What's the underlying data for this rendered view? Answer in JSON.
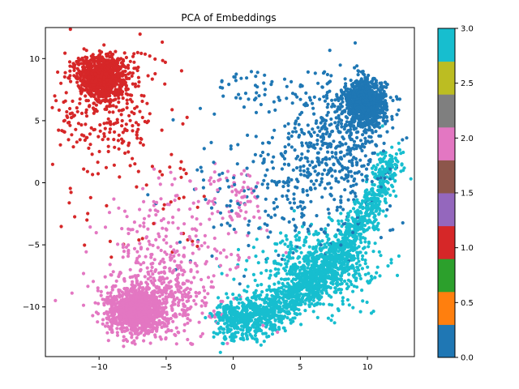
{
  "chart_data": {
    "type": "scatter",
    "title": "PCA of Embeddings",
    "xlabel": "",
    "ylabel": "",
    "xlim": [
      -14,
      13.5
    ],
    "ylim": [
      -14,
      12.5
    ],
    "grid": false,
    "x_ticks": [
      -10,
      -5,
      0,
      5,
      10
    ],
    "x_tick_labels": [
      "−10",
      "−5",
      "0",
      "5",
      "10"
    ],
    "y_ticks": [
      -10,
      -5,
      0,
      5,
      10
    ],
    "y_tick_labels": [
      "−10",
      "−5",
      "0",
      "5",
      "10"
    ],
    "colorbar": {
      "colormap": "tab10",
      "range": [
        0,
        3
      ],
      "ticks": [
        0,
        0.5,
        1,
        1.5,
        2,
        2.5,
        3
      ],
      "tick_labels": [
        "0.0",
        "0.5",
        "1.0",
        "1.5",
        "2.0",
        "2.5",
        "3.0"
      ],
      "colors": [
        "#1f77b4",
        "#ff7f0e",
        "#2ca02c",
        "#d62728",
        "#9467bd",
        "#8c564b",
        "#e377c2",
        "#7f7f7f",
        "#bcbd22",
        "#17becf"
      ]
    },
    "series": [
      {
        "value": 0,
        "color": "#1f77b4",
        "core_center": [
          9.8,
          6.4
        ],
        "core_spread": [
          0.9,
          1.0
        ],
        "approx_range": {
          "x": [
            -3,
            12
          ],
          "y": [
            -6,
            9
          ]
        }
      },
      {
        "value": 1,
        "color": "#d62728",
        "core_center": [
          -9.8,
          8.6
        ],
        "core_spread": [
          0.9,
          0.9
        ],
        "approx_range": {
          "x": [
            -13.5,
            -1.5
          ],
          "y": [
            -6.5,
            11
          ]
        }
      },
      {
        "value": 2,
        "color": "#e377c2",
        "core_center": [
          -7.2,
          -10.4
        ],
        "core_spread": [
          1.1,
          0.9
        ],
        "approx_range": {
          "x": [
            -11,
            3
          ],
          "y": [
            -13,
            -1
          ]
        }
      },
      {
        "value": 3,
        "color": "#17becf",
        "core_center": [
          6.5,
          -6.5
        ],
        "core_spread": [
          2.5,
          1.5
        ],
        "approx_range": {
          "x": [
            -2,
            12
          ],
          "y": [
            -11.5,
            2
          ]
        }
      }
    ]
  }
}
